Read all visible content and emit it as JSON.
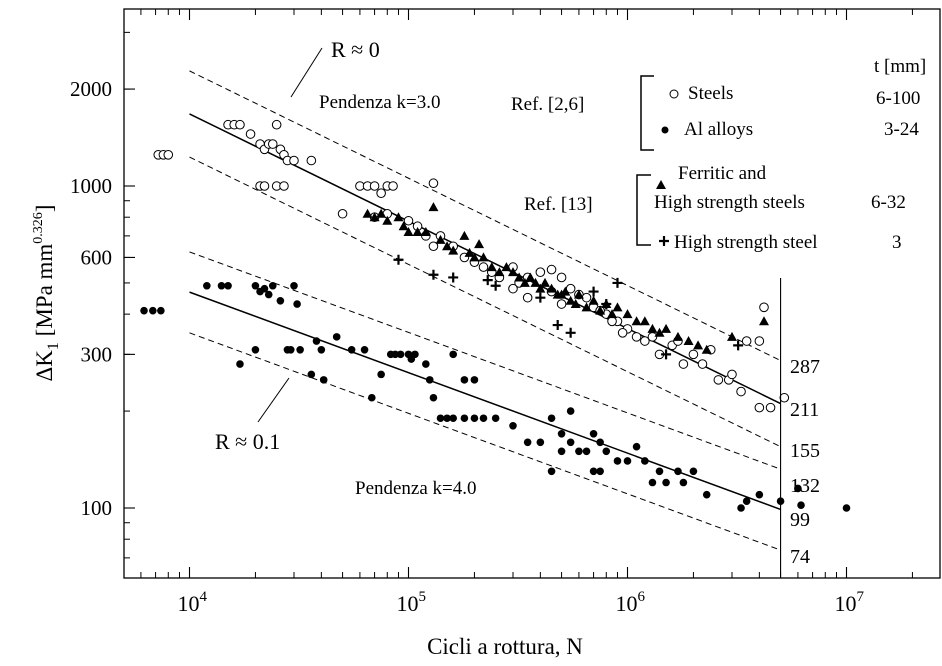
{
  "chart_data": {
    "type": "scatter",
    "xscale": "log",
    "yscale": "log",
    "xlim": [
      5000,
      30000000
    ],
    "ylim": [
      70,
      4000
    ],
    "xlabel": "Cicli a rottura, N",
    "ylabel": {
      "base": "ΔK",
      "sub": "1",
      "unit": " [MPa mm",
      "sup": "0.326",
      "close": "]"
    },
    "x_ticks": [
      {
        "value": 10000,
        "base": "10",
        "exp": "4"
      },
      {
        "value": 100000,
        "base": "10",
        "exp": "5"
      },
      {
        "value": 1000000,
        "base": "10",
        "exp": "6"
      },
      {
        "value": 10000000,
        "base": "10",
        "exp": "7"
      }
    ],
    "y_ticks": [
      {
        "value": 100,
        "label": "100"
      },
      {
        "value": 300,
        "label": "300"
      },
      {
        "value": 600,
        "label": "600"
      },
      {
        "value": 1000,
        "label": "1000"
      },
      {
        "value": 2000,
        "label": "2000"
      }
    ],
    "reference_N": 5000000,
    "right_values": [
      {
        "value": 287,
        "label": "287"
      },
      {
        "value": 211,
        "label": "211"
      },
      {
        "value": 155,
        "label": "155"
      },
      {
        "value": 132,
        "label": "132"
      },
      {
        "value": 99,
        "label": "99"
      },
      {
        "value": 74,
        "label": "74"
      }
    ],
    "bands": [
      {
        "label": "R ≈ 0",
        "slope_label": "Pendenza k=3.0",
        "k": 3.0,
        "lines": [
          {
            "style": "dashed",
            "value_at_ref": 287
          },
          {
            "style": "solid",
            "value_at_ref": 211
          },
          {
            "style": "dashed",
            "value_at_ref": 155
          }
        ]
      },
      {
        "label": "R ≈ 0.1",
        "slope_label": "Pendenza k=4.0",
        "k": 4.0,
        "lines": [
          {
            "style": "dashed",
            "value_at_ref": 132
          },
          {
            "style": "solid",
            "value_at_ref": 99
          },
          {
            "style": "dashed",
            "value_at_ref": 74
          }
        ]
      }
    ],
    "legend": {
      "header": "t [mm]",
      "groups": [
        {
          "ref": "Ref. [2,6]",
          "items": [
            {
              "marker": "open-circle",
              "label": [
                "Steels"
              ],
              "t": "6-100"
            },
            {
              "marker": "filled-circle",
              "label": [
                "Al alloys"
              ],
              "t": "3-24"
            }
          ]
        },
        {
          "ref": "Ref. [13]",
          "items": [
            {
              "marker": "filled-triangle",
              "label": [
                "Ferritic and",
                "High strength steels"
              ],
              "t": "6-32"
            },
            {
              "marker": "plus",
              "label": [
                "High strength steel"
              ],
              "t": "3"
            }
          ]
        }
      ]
    },
    "series": [
      {
        "name": "Steels",
        "marker": "open-circle",
        "points": [
          [
            7200,
            1250
          ],
          [
            7600,
            1250
          ],
          [
            8000,
            1250
          ],
          [
            15000,
            1550
          ],
          [
            16000,
            1550
          ],
          [
            17000,
            1550
          ],
          [
            19000,
            1450
          ],
          [
            21000,
            1350
          ],
          [
            22000,
            1300
          ],
          [
            23000,
            1350
          ],
          [
            24000,
            1350
          ],
          [
            25000,
            1550
          ],
          [
            26000,
            1300
          ],
          [
            27000,
            1250
          ],
          [
            28000,
            1200
          ],
          [
            30000,
            1200
          ],
          [
            36000,
            1200
          ],
          [
            21000,
            1000
          ],
          [
            22000,
            1000
          ],
          [
            25000,
            1000
          ],
          [
            27000,
            1000
          ],
          [
            50000,
            820
          ],
          [
            60000,
            1000
          ],
          [
            65000,
            1000
          ],
          [
            70000,
            1000
          ],
          [
            75000,
            950
          ],
          [
            80000,
            1000
          ],
          [
            85000,
            1000
          ],
          [
            130000,
            1020
          ],
          [
            70000,
            800
          ],
          [
            80000,
            820
          ],
          [
            100000,
            780
          ],
          [
            110000,
            750
          ],
          [
            120000,
            700
          ],
          [
            130000,
            650
          ],
          [
            140000,
            700
          ],
          [
            160000,
            650
          ],
          [
            180000,
            600
          ],
          [
            200000,
            580
          ],
          [
            220000,
            560
          ],
          [
            240000,
            540
          ],
          [
            260000,
            520
          ],
          [
            300000,
            560
          ],
          [
            320000,
            500
          ],
          [
            350000,
            520
          ],
          [
            400000,
            540
          ],
          [
            450000,
            550
          ],
          [
            500000,
            520
          ],
          [
            550000,
            480
          ],
          [
            600000,
            460
          ],
          [
            700000,
            420
          ],
          [
            800000,
            400
          ],
          [
            900000,
            380
          ],
          [
            1000000,
            360
          ],
          [
            1100000,
            340
          ],
          [
            1200000,
            330
          ],
          [
            1400000,
            300
          ],
          [
            1600000,
            320
          ],
          [
            1800000,
            280
          ],
          [
            2000000,
            300
          ],
          [
            2200000,
            280
          ],
          [
            2600000,
            250
          ],
          [
            2900000,
            250
          ],
          [
            3300000,
            230
          ],
          [
            4000000,
            205
          ],
          [
            4500000,
            205
          ],
          [
            5200000,
            220
          ],
          [
            4000000,
            330
          ],
          [
            3500000,
            330
          ],
          [
            300000,
            480
          ],
          [
            350000,
            450
          ],
          [
            450000,
            470
          ],
          [
            500000,
            430
          ],
          [
            650000,
            450
          ],
          [
            750000,
            410
          ],
          [
            850000,
            380
          ],
          [
            950000,
            350
          ],
          [
            1300000,
            340
          ],
          [
            1700000,
            330
          ],
          [
            2400000,
            310
          ],
          [
            3000000,
            260
          ],
          [
            4200000,
            420
          ]
        ]
      },
      {
        "name": "Al alloys",
        "marker": "filled-circle",
        "points": [
          [
            6200,
            410
          ],
          [
            6800,
            410
          ],
          [
            7400,
            410
          ],
          [
            12000,
            490
          ],
          [
            14000,
            490
          ],
          [
            15000,
            490
          ],
          [
            17000,
            280
          ],
          [
            20000,
            490
          ],
          [
            21000,
            470
          ],
          [
            22000,
            480
          ],
          [
            23000,
            460
          ],
          [
            24000,
            490
          ],
          [
            20000,
            310
          ],
          [
            26000,
            440
          ],
          [
            28000,
            310
          ],
          [
            29000,
            310
          ],
          [
            30000,
            490
          ],
          [
            31000,
            430
          ],
          [
            32000,
            310
          ],
          [
            36000,
            260
          ],
          [
            38000,
            330
          ],
          [
            40000,
            310
          ],
          [
            41000,
            250
          ],
          [
            47000,
            340
          ],
          [
            55000,
            310
          ],
          [
            63000,
            310
          ],
          [
            68000,
            220
          ],
          [
            75000,
            260
          ],
          [
            83000,
            300
          ],
          [
            87000,
            300
          ],
          [
            92000,
            300
          ],
          [
            100000,
            300
          ],
          [
            103000,
            290
          ],
          [
            107000,
            300
          ],
          [
            120000,
            280
          ],
          [
            125000,
            250
          ],
          [
            130000,
            220
          ],
          [
            140000,
            190
          ],
          [
            150000,
            190
          ],
          [
            160000,
            190
          ],
          [
            180000,
            190
          ],
          [
            200000,
            190
          ],
          [
            220000,
            190
          ],
          [
            250000,
            190
          ],
          [
            180000,
            250
          ],
          [
            160000,
            300
          ],
          [
            200000,
            250
          ],
          [
            300000,
            180
          ],
          [
            350000,
            160
          ],
          [
            400000,
            160
          ],
          [
            450000,
            130
          ],
          [
            500000,
            150
          ],
          [
            550000,
            160
          ],
          [
            600000,
            150
          ],
          [
            650000,
            150
          ],
          [
            700000,
            130
          ],
          [
            750000,
            130
          ],
          [
            800000,
            150
          ],
          [
            900000,
            140
          ],
          [
            1000000,
            140
          ],
          [
            1200000,
            140
          ],
          [
            1300000,
            120
          ],
          [
            1500000,
            120
          ],
          [
            1700000,
            130
          ],
          [
            2000000,
            130
          ],
          [
            2300000,
            110
          ],
          [
            3300000,
            100
          ],
          [
            3500000,
            105
          ],
          [
            4000000,
            110
          ],
          [
            5000000,
            105
          ],
          [
            6000000,
            115
          ],
          [
            6200000,
            102
          ],
          [
            10000000,
            100
          ],
          [
            450000,
            190
          ],
          [
            500000,
            170
          ],
          [
            550000,
            200
          ],
          [
            700000,
            170
          ],
          [
            750000,
            160
          ],
          [
            1100000,
            155
          ],
          [
            1400000,
            130
          ],
          [
            1800000,
            120
          ]
        ]
      },
      {
        "name": "Ferritic and High strength steels",
        "marker": "filled-triangle",
        "points": [
          [
            65000,
            820
          ],
          [
            70000,
            800
          ],
          [
            75000,
            820
          ],
          [
            80000,
            780
          ],
          [
            90000,
            800
          ],
          [
            95000,
            750
          ],
          [
            100000,
            720
          ],
          [
            110000,
            720
          ],
          [
            120000,
            720
          ],
          [
            130000,
            860
          ],
          [
            140000,
            680
          ],
          [
            150000,
            650
          ],
          [
            160000,
            630
          ],
          [
            180000,
            700
          ],
          [
            190000,
            620
          ],
          [
            200000,
            600
          ],
          [
            210000,
            660
          ],
          [
            220000,
            600
          ],
          [
            240000,
            560
          ],
          [
            260000,
            540
          ],
          [
            280000,
            560
          ],
          [
            300000,
            540
          ],
          [
            320000,
            520
          ],
          [
            340000,
            500
          ],
          [
            360000,
            520
          ],
          [
            380000,
            500
          ],
          [
            400000,
            480
          ],
          [
            420000,
            500
          ],
          [
            450000,
            480
          ],
          [
            480000,
            460
          ],
          [
            500000,
            460
          ],
          [
            520000,
            470
          ],
          [
            550000,
            440
          ],
          [
            580000,
            430
          ],
          [
            600000,
            460
          ],
          [
            650000,
            420
          ],
          [
            700000,
            440
          ],
          [
            750000,
            410
          ],
          [
            800000,
            430
          ],
          [
            850000,
            400
          ],
          [
            900000,
            420
          ],
          [
            1000000,
            400
          ],
          [
            1100000,
            380
          ],
          [
            1200000,
            380
          ],
          [
            1300000,
            360
          ],
          [
            1400000,
            350
          ],
          [
            1500000,
            360
          ],
          [
            1700000,
            340
          ],
          [
            1900000,
            330
          ],
          [
            2100000,
            320
          ],
          [
            2300000,
            310
          ],
          [
            3000000,
            340
          ],
          [
            4200000,
            380
          ]
        ]
      },
      {
        "name": "High strength steel",
        "marker": "plus",
        "points": [
          [
            90000,
            590
          ],
          [
            130000,
            530
          ],
          [
            160000,
            520
          ],
          [
            230000,
            510
          ],
          [
            250000,
            490
          ],
          [
            400000,
            450
          ],
          [
            480000,
            370
          ],
          [
            550000,
            350
          ],
          [
            700000,
            470
          ],
          [
            800000,
            430
          ],
          [
            900000,
            500
          ],
          [
            1500000,
            300
          ],
          [
            3200000,
            320
          ]
        ]
      }
    ]
  }
}
